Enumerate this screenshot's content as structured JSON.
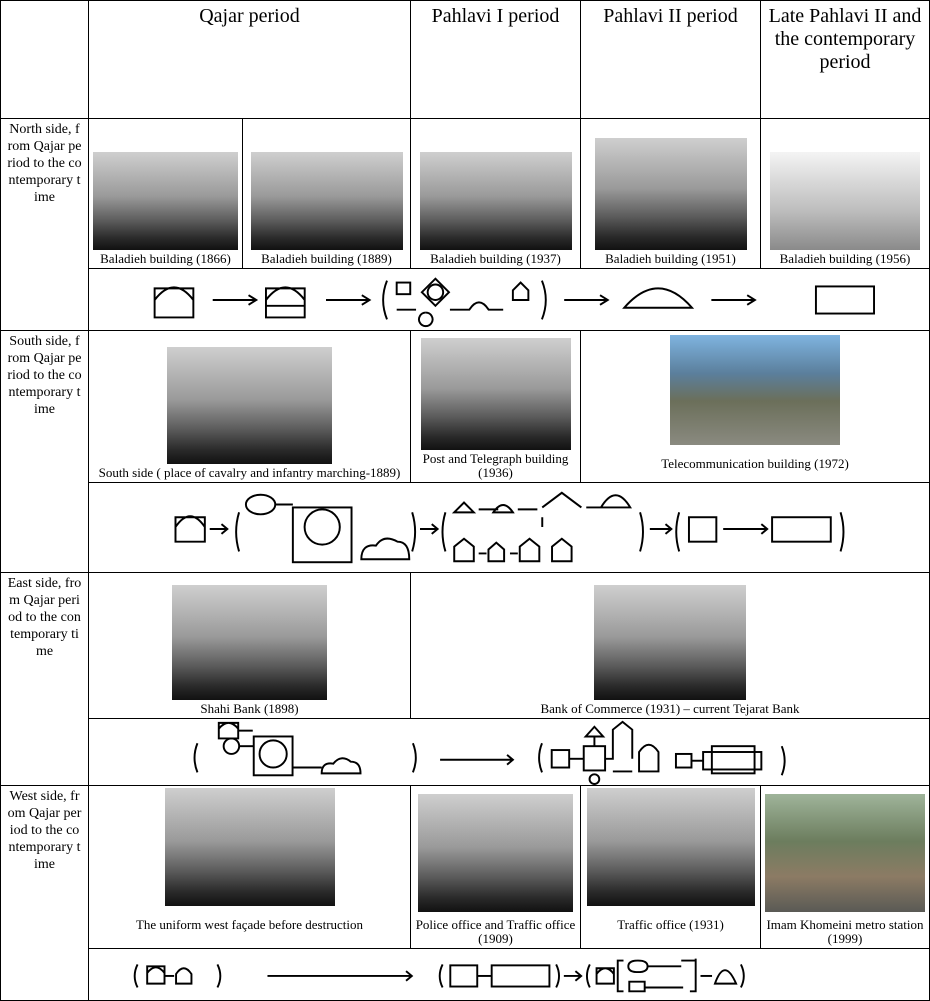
{
  "header": {
    "periods": [
      "Qajar period",
      "Pahlavi I period",
      "Pahlavi II period",
      "Late Pahlavi II and the contemporary period"
    ]
  },
  "rows": [
    {
      "label": "North side, from Qajar period to the contemporary time",
      "captions": [
        "Baladieh building (1866)",
        "Baladieh building (1889)",
        "Baladieh building (1937)",
        "Baladieh building (1951)",
        "Baladieh building (1956)"
      ]
    },
    {
      "label": "South side, from Qajar period to the contemporary time",
      "captions": [
        "South side ( place of cavalry and infantry marching-1889)",
        "Post and Telegraph building (1936)",
        "Telecommunication building (1972)"
      ]
    },
    {
      "label": "East side, from Qajar period to the contemporary time",
      "captions": [
        "Shahi Bank (1898)",
        "Bank of Commerce (1931) – current Tejarat Bank"
      ]
    },
    {
      "label": "West side, from Qajar period to the contemporary time",
      "captions": [
        "The uniform west façade before destruction",
        "Police office and Traffic office (1909)",
        "Traffic office (1931)",
        "Imam Khomeini metro station (1999)"
      ]
    }
  ]
}
